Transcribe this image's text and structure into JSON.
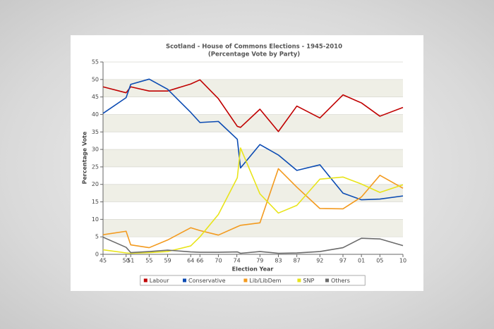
{
  "chart_data": {
    "type": "line",
    "title": "Scotland  - House of Commons Elections - 1945-2010",
    "subtitle": "(Percentage Vote by Party)",
    "x_label": "Election Year",
    "y_label": "Percentage Vote",
    "x": [
      1945,
      1950,
      1951,
      1955,
      1959,
      1964,
      1966,
      1970,
      1974.1,
      1974.8,
      1979,
      1983,
      1987,
      1992,
      1997,
      2001,
      2005,
      2010
    ],
    "xlim": [
      1945,
      2010
    ],
    "xticks": [
      {
        "value": 1945,
        "label": "45"
      },
      {
        "value": 1950,
        "label": "50"
      },
      {
        "value": 1951,
        "label": "51"
      },
      {
        "value": 1955,
        "label": "55"
      },
      {
        "value": 1959,
        "label": "59"
      },
      {
        "value": 1964,
        "label": "64"
      },
      {
        "value": 1966,
        "label": "66"
      },
      {
        "value": 1970,
        "label": "70"
      },
      {
        "value": 1974,
        "label": "74"
      },
      {
        "value": 1979,
        "label": "79"
      },
      {
        "value": 1983,
        "label": "83"
      },
      {
        "value": 1987,
        "label": "87"
      },
      {
        "value": 1992,
        "label": "92"
      },
      {
        "value": 1997,
        "label": "97"
      },
      {
        "value": 2001,
        "label": "01"
      },
      {
        "value": 2005,
        "label": "05"
      },
      {
        "value": 2010,
        "label": "10"
      }
    ],
    "ylim": [
      0,
      55
    ],
    "yticks": [
      0,
      5,
      10,
      15,
      20,
      25,
      30,
      35,
      40,
      45,
      50,
      55
    ],
    "series": [
      {
        "name": "Labour",
        "color": "#c00000",
        "values": [
          47.9,
          46.2,
          47.9,
          46.7,
          46.7,
          48.7,
          49.9,
          44.5,
          36.6,
          36.3,
          41.5,
          35.1,
          42.4,
          39.0,
          45.6,
          43.3,
          39.5,
          42.0
        ]
      },
      {
        "name": "Conservative",
        "color": "#0b4bb3",
        "values": [
          40.3,
          44.8,
          48.6,
          50.1,
          47.2,
          40.6,
          37.7,
          38.0,
          32.9,
          24.7,
          31.4,
          28.4,
          24.0,
          25.6,
          17.5,
          15.6,
          15.8,
          16.7
        ]
      },
      {
        "name": "Lib/LibDem",
        "color": "#f39a1e",
        "values": [
          5.6,
          6.6,
          2.7,
          1.9,
          4.1,
          7.6,
          6.8,
          5.5,
          7.9,
          8.3,
          9.0,
          24.5,
          19.2,
          13.1,
          13.0,
          16.4,
          22.6,
          18.9
        ]
      },
      {
        "name": "SNP",
        "color": "#e8e41a",
        "values": [
          1.3,
          0.4,
          0.3,
          0.5,
          0.8,
          2.4,
          5.0,
          11.4,
          21.9,
          30.4,
          17.3,
          11.8,
          14.0,
          21.5,
          22.1,
          20.1,
          17.7,
          19.9
        ]
      },
      {
        "name": "Others",
        "color": "#6b6b6b",
        "values": [
          4.9,
          2.0,
          0.5,
          0.8,
          1.2,
          0.7,
          0.6,
          0.6,
          0.7,
          0.3,
          0.8,
          0.3,
          0.4,
          0.8,
          1.9,
          4.6,
          4.4,
          2.5
        ]
      }
    ]
  }
}
